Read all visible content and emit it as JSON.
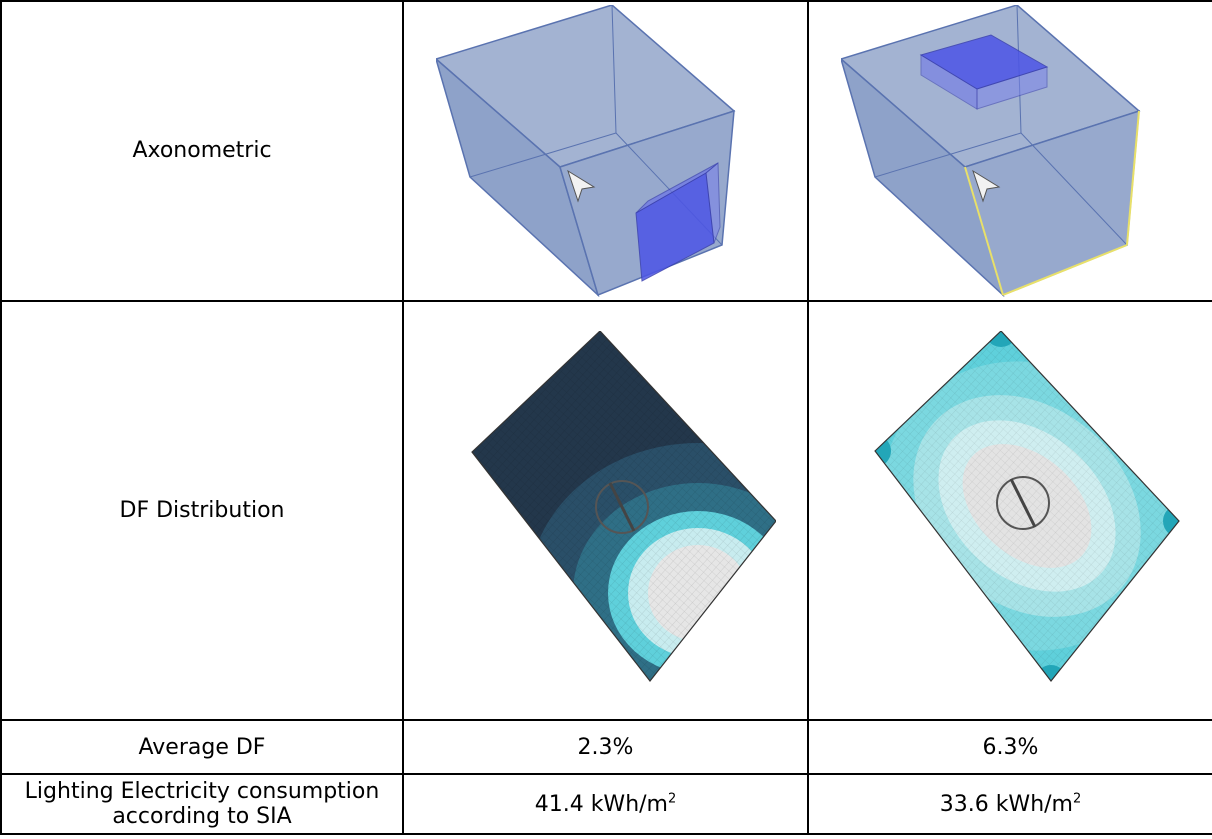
{
  "rows": {
    "axonometric": {
      "label": "Axonometric"
    },
    "df_distribution": {
      "label": "DF Distribution"
    },
    "average_df": {
      "label": "Average DF",
      "case1": "2.3%",
      "case2": "6.3%"
    },
    "lighting": {
      "label_line1": "Lighting Electricity consumption",
      "label_line2": "according to SIA",
      "case1_value": "41.4 kWh/m",
      "case2_value": "33.6 kWh/m",
      "unit_exponent": "2"
    }
  },
  "colors": {
    "volume_fill": "#9fb0d0",
    "volume_edge": "#5a73b0",
    "window_fill": "#4d55e6",
    "df_dark": "#23374b",
    "df_mid": "#2f6f86",
    "df_cyan": "#5fd0db",
    "df_light": "#c8ecef",
    "df_white": "#e6e6e6",
    "highlight_edge": "#e8e06a"
  }
}
